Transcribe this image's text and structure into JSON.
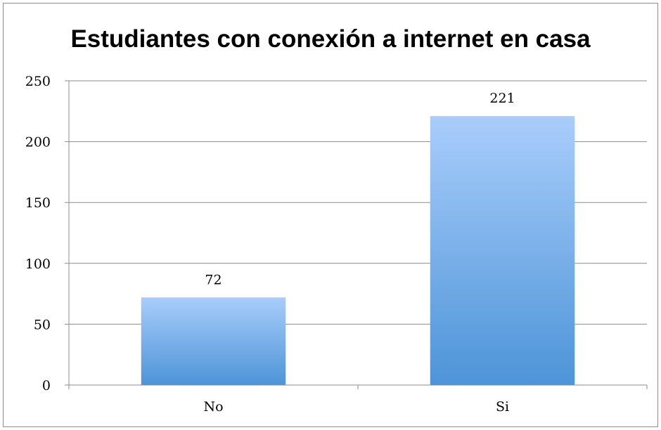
{
  "chart_data": {
    "type": "bar",
    "title": "Estudiantes con conexión a internet en casa",
    "categories": [
      "No",
      "Si"
    ],
    "values": [
      72,
      221
    ],
    "data_labels": [
      "72",
      "221"
    ],
    "xlabel": "",
    "ylabel": "",
    "ylim": [
      0,
      250
    ],
    "yticks": [
      0,
      50,
      100,
      150,
      200,
      250
    ],
    "ytick_labels": [
      "0",
      "50",
      "100",
      "150",
      "200",
      "250"
    ],
    "grid": true,
    "legend": false,
    "colors": {
      "bar_top": "#a9cdfb",
      "bar_bottom": "#4d94d8",
      "gridline": "#8c8c8c",
      "axis": "#8c8c8c"
    }
  }
}
